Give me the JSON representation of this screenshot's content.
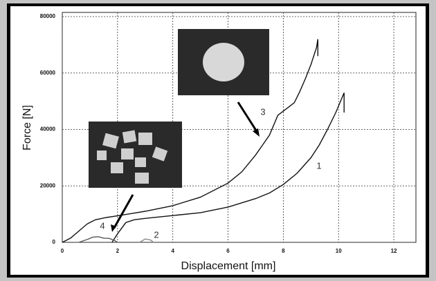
{
  "chart_data": {
    "type": "line",
    "xlabel": "Displacement [mm]",
    "ylabel": "Force [N]",
    "xlim": [
      0,
      12.8
    ],
    "ylim": [
      0,
      80000
    ],
    "xticks": [
      0,
      2,
      4,
      6,
      8,
      10,
      12
    ],
    "yticks": [
      0,
      20000,
      40000,
      60000,
      80000
    ],
    "grid": true,
    "series": [
      {
        "name": "1",
        "color": "#111111",
        "x": [
          1.8,
          2.0,
          2.3,
          2.6,
          3.0,
          4.0,
          5.0,
          6.0,
          7.0,
          7.5,
          8.0,
          8.5,
          9.0,
          9.3,
          9.6,
          9.9,
          10.2,
          10.2
        ],
        "values": [
          0,
          3000,
          7000,
          8000,
          8500,
          9500,
          10500,
          12500,
          15500,
          17500,
          20500,
          24500,
          30000,
          34500,
          40000,
          46000,
          53000,
          46000
        ]
      },
      {
        "name": "2",
        "color": "#888888",
        "x": [
          2.8,
          3.0,
          3.2,
          3.3
        ],
        "values": [
          0,
          1200,
          800,
          0
        ]
      },
      {
        "name": "3",
        "color": "#111111",
        "x": [
          0,
          0.3,
          0.6,
          0.9,
          1.2,
          1.6,
          2.0,
          2.5,
          3.0,
          4.0,
          5.0,
          6.0,
          6.5,
          7.0,
          7.5,
          7.8,
          8.0,
          8.2,
          8.4,
          8.6,
          8.8,
          9.0,
          9.2,
          9.25,
          9.25
        ],
        "values": [
          0,
          1500,
          4000,
          6500,
          8000,
          8800,
          9400,
          10200,
          11000,
          13000,
          16000,
          21000,
          25000,
          31000,
          38000,
          45000,
          46500,
          48000,
          49500,
          53500,
          58000,
          63000,
          69000,
          72000,
          66000
        ]
      },
      {
        "name": "4",
        "color": "#555555",
        "x": [
          0.6,
          0.9,
          1.1,
          1.3,
          1.5,
          1.7,
          1.9,
          2.0
        ],
        "values": [
          0,
          1000,
          1800,
          2000,
          1500,
          1400,
          600,
          0
        ]
      }
    ]
  }
}
